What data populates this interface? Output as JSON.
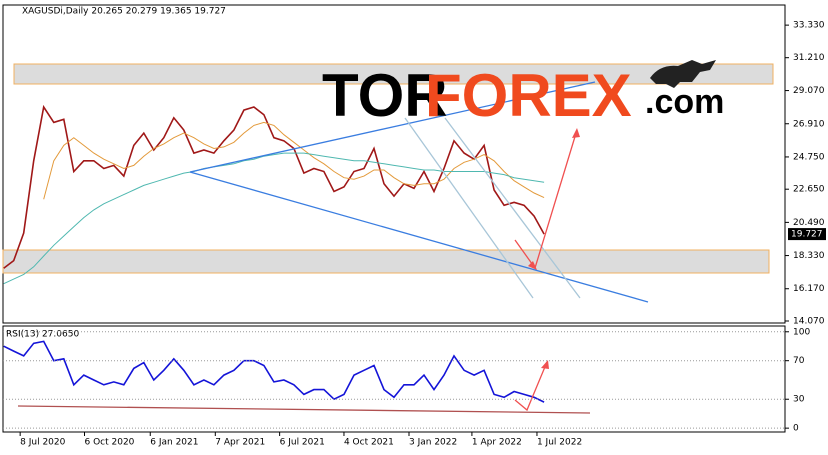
{
  "chart_data": [
    {
      "type": "line",
      "title": "XAGUSDi,Daily  20.265 20.279 19.365 19.727",
      "x": [
        "2020-06-15",
        "2020-06-29",
        "2020-07-13",
        "2020-07-27",
        "2020-08-10",
        "2020-08-24",
        "2020-09-07",
        "2020-09-21",
        "2020-10-05",
        "2020-10-19",
        "2020-11-02",
        "2020-11-16",
        "2020-11-30",
        "2020-12-14",
        "2020-12-28",
        "2021-01-11",
        "2021-01-25",
        "2021-02-08",
        "2021-02-22",
        "2021-03-08",
        "2021-03-22",
        "2021-04-05",
        "2021-04-19",
        "2021-05-03",
        "2021-05-17",
        "2021-05-31",
        "2021-06-14",
        "2021-06-28",
        "2021-07-12",
        "2021-07-26",
        "2021-08-09",
        "2021-08-23",
        "2021-09-06",
        "2021-09-20",
        "2021-10-04",
        "2021-10-18",
        "2021-11-01",
        "2021-11-15",
        "2021-11-29",
        "2021-12-13",
        "2021-12-27",
        "2022-01-10",
        "2022-01-24",
        "2022-02-07",
        "2022-02-21",
        "2022-03-07",
        "2022-03-21",
        "2022-04-04",
        "2022-04-18",
        "2022-05-02",
        "2022-05-16",
        "2022-05-30",
        "2022-06-13",
        "2022-06-27",
        "2022-07-11"
      ],
      "xlim": [
        "2020-06-14",
        "2023-06-13"
      ],
      "series": [
        {
          "color": "#a01818",
          "values": [
            17.5,
            18.0,
            19.8,
            24.5,
            28.0,
            27.0,
            27.2,
            23.8,
            24.5,
            24.5,
            24.0,
            24.2,
            23.5,
            25.5,
            26.3,
            25.2,
            26.0,
            27.3,
            26.5,
            25.0,
            25.2,
            25.0,
            25.8,
            26.5,
            27.8,
            28.0,
            27.5,
            26.0,
            25.8,
            25.3,
            23.7,
            24.0,
            23.8,
            22.5,
            22.8,
            23.8,
            24.0,
            25.3,
            23.0,
            22.2,
            23.0,
            22.7,
            23.8,
            22.5,
            24.0,
            25.8,
            25.0,
            24.6,
            25.5,
            22.6,
            21.6,
            21.8,
            21.6,
            20.9,
            19.727
          ]
        },
        {
          "color": "#e39a3b",
          "values": [
            null,
            null,
            null,
            null,
            22.0,
            24.5,
            25.5,
            26.0,
            25.5,
            25.0,
            24.6,
            24.3,
            24.0,
            24.2,
            24.8,
            25.3,
            25.6,
            26.0,
            26.3,
            26.0,
            25.6,
            25.3,
            25.4,
            25.7,
            26.3,
            26.8,
            27.0,
            26.8,
            26.2,
            25.7,
            25.2,
            24.7,
            24.3,
            23.8,
            23.4,
            23.3,
            23.5,
            23.9,
            23.9,
            23.4,
            23.0,
            22.9,
            23.0,
            23.0,
            23.3,
            24.0,
            24.4,
            24.6,
            24.9,
            24.5,
            23.8,
            23.2,
            22.8,
            22.4,
            22.1
          ]
        },
        {
          "color": "#4fb8b0",
          "values": [
            16.5,
            16.8,
            17.1,
            17.6,
            18.3,
            19.0,
            19.6,
            20.2,
            20.8,
            21.3,
            21.7,
            22.0,
            22.3,
            22.6,
            22.9,
            23.1,
            23.3,
            23.5,
            23.7,
            23.8,
            24.0,
            24.1,
            24.2,
            24.3,
            24.5,
            24.6,
            24.8,
            24.9,
            25.0,
            25.0,
            25.0,
            24.9,
            24.8,
            24.7,
            24.6,
            24.5,
            24.5,
            24.4,
            24.3,
            24.2,
            24.1,
            24.0,
            23.9,
            23.9,
            23.8,
            23.8,
            23.8,
            23.8,
            23.8,
            23.7,
            23.6,
            23.4,
            23.3,
            23.2,
            23.1
          ]
        }
      ],
      "ylim": [
        13.94,
        34.64
      ],
      "yticks": [
        {
          "value": 33.33,
          "label": "33.330"
        },
        {
          "value": 31.21,
          "label": "31.210"
        },
        {
          "value": 29.07,
          "label": "29.070"
        },
        {
          "value": 26.91,
          "label": "26.910"
        },
        {
          "value": 24.75,
          "label": "24.750"
        },
        {
          "value": 22.65,
          "label": "22.650"
        },
        {
          "value": 20.49,
          "label": "20.490"
        },
        {
          "value": 18.33,
          "label": "18.330"
        },
        {
          "value": 16.17,
          "label": "16.170"
        },
        {
          "value": 14.07,
          "label": "14.070"
        }
      ],
      "logo": [
        "TOR",
        "FOREX",
        ".com"
      ]
    },
    {
      "type": "line",
      "title": "RSI(13) 27.0650",
      "x": [
        "2020-06-15",
        "2020-06-29",
        "2020-07-13",
        "2020-07-27",
        "2020-08-10",
        "2020-08-24",
        "2020-09-07",
        "2020-09-21",
        "2020-10-05",
        "2020-10-19",
        "2020-11-02",
        "2020-11-16",
        "2020-11-30",
        "2020-12-14",
        "2020-12-28",
        "2021-01-11",
        "2021-01-25",
        "2021-02-08",
        "2021-02-22",
        "2021-03-08",
        "2021-03-22",
        "2021-04-05",
        "2021-04-19",
        "2021-05-03",
        "2021-05-17",
        "2021-05-31",
        "2021-06-14",
        "2021-06-28",
        "2021-07-12",
        "2021-07-26",
        "2021-08-09",
        "2021-08-23",
        "2021-09-06",
        "2021-09-20",
        "2021-10-04",
        "2021-10-18",
        "2021-11-01",
        "2021-11-15",
        "2021-11-29",
        "2021-12-13",
        "2021-12-27",
        "2022-01-10",
        "2022-01-24",
        "2022-02-07",
        "2022-02-21",
        "2022-03-07",
        "2022-03-21",
        "2022-04-04",
        "2022-04-18",
        "2022-05-02",
        "2022-05-16",
        "2022-05-30",
        "2022-06-13",
        "2022-06-27",
        "2022-07-11"
      ],
      "xlim": [
        "2020-06-14",
        "2023-06-13"
      ],
      "xticks": [
        {
          "value": "2020-07-08",
          "label": "8 Jul 2020"
        },
        {
          "value": "2020-10-06",
          "label": "6 Oct 2020"
        },
        {
          "value": "2021-01-06",
          "label": "6 Jan 2021"
        },
        {
          "value": "2021-04-07",
          "label": "7 Apr 2021"
        },
        {
          "value": "2021-07-06",
          "label": "6 Jul 2021"
        },
        {
          "value": "2021-10-04",
          "label": "4 Oct 2021"
        },
        {
          "value": "2022-01-03",
          "label": "3 Jan 2022"
        },
        {
          "value": "2022-04-01",
          "label": "1 Apr 2022"
        },
        {
          "value": "2022-07-01",
          "label": "1 Jul 2022"
        }
      ],
      "series": [
        {
          "color": "#1414d8",
          "values": [
            85,
            80,
            75,
            88,
            90,
            70,
            72,
            45,
            55,
            50,
            45,
            48,
            45,
            62,
            68,
            50,
            60,
            72,
            60,
            45,
            50,
            45,
            55,
            60,
            70,
            70,
            65,
            48,
            50,
            45,
            35,
            40,
            40,
            30,
            35,
            55,
            60,
            65,
            40,
            32,
            45,
            45,
            55,
            40,
            55,
            75,
            60,
            55,
            60,
            35,
            32,
            38,
            35,
            32,
            27.065
          ]
        }
      ],
      "ylim": [
        -4,
        106
      ],
      "yticks": [
        100,
        70,
        30,
        0
      ],
      "grid": true
    }
  ]
}
